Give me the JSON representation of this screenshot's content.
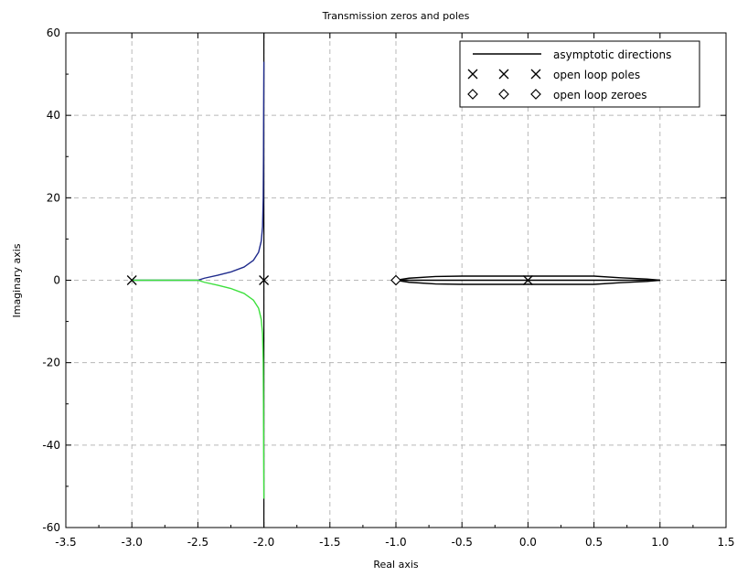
{
  "chart_data": {
    "type": "line",
    "title": "Transmission zeros and poles",
    "xlabel": "Real axis",
    "ylabel": "Imaginary axis",
    "xlim": [
      -3.5,
      1.5
    ],
    "ylim": [
      -60,
      60
    ],
    "x_ticks": [
      "-3.5",
      "-3.0",
      "-2.5",
      "-2.0",
      "-1.5",
      "-1.0",
      "-0.5",
      "0.0",
      "0.5",
      "1.0",
      "1.5"
    ],
    "y_ticks": [
      "-60",
      "-40",
      "-20",
      "0",
      "20",
      "40",
      "60"
    ],
    "grid": true,
    "legend_position": "top-right",
    "legend": [
      {
        "label": "asymptotic directions",
        "marker": "line"
      },
      {
        "label": "open loop poles",
        "marker": "x"
      },
      {
        "label": "open loop zeroes",
        "marker": "diamond"
      }
    ],
    "asymptote": {
      "x": -2.0,
      "ylim": [
        -60,
        60
      ],
      "color": "#000000"
    },
    "series": [
      {
        "color": "#1f2b8c",
        "x": [
          -3.0,
          -2.8,
          -2.6,
          -2.5,
          -2.45,
          -2.35,
          -2.25,
          -2.15,
          -2.08,
          -2.04,
          -2.02,
          -2.01,
          -2.005,
          -2.003,
          -2.002,
          -2.001,
          -2.0
        ],
        "y": [
          0,
          0,
          0,
          0,
          0.5,
          1.2,
          2.0,
          3.2,
          4.8,
          6.8,
          9.5,
          13.0,
          20.0,
          30.0,
          40.0,
          47.0,
          53.0
        ]
      },
      {
        "color": "#3ee03e",
        "x": [
          -3.0,
          -2.8,
          -2.6,
          -2.5,
          -2.45,
          -2.35,
          -2.25,
          -2.15,
          -2.08,
          -2.04,
          -2.02,
          -2.01,
          -2.005,
          -2.003,
          -2.002,
          -2.001,
          -2.0
        ],
        "y": [
          0,
          0,
          0,
          0,
          -0.5,
          -1.2,
          -2.0,
          -3.2,
          -4.8,
          -6.8,
          -9.5,
          -13.0,
          -20.0,
          -30.0,
          -40.0,
          -47.0,
          -53.0
        ]
      },
      {
        "color": "#000000",
        "x": [
          -1.0,
          -0.9,
          -0.7,
          -0.5,
          0.0,
          0.5,
          0.7,
          0.9,
          1.0
        ],
        "y": [
          0,
          0.5,
          0.9,
          1.0,
          1.0,
          1.0,
          0.6,
          0.3,
          0
        ]
      },
      {
        "color": "#000000",
        "x": [
          -1.0,
          -0.9,
          -0.7,
          -0.5,
          0.0,
          0.5,
          0.7,
          0.9,
          1.0
        ],
        "y": [
          0,
          -0.5,
          -0.9,
          -1.0,
          -1.0,
          -1.0,
          -0.6,
          -0.3,
          0
        ]
      },
      {
        "color": "#000000",
        "x": [
          -1.0,
          1.0
        ],
        "y": [
          0,
          0
        ]
      }
    ],
    "poles": [
      {
        "x": -3.0,
        "y": 0
      },
      {
        "x": -2.0,
        "y": 0
      },
      {
        "x": 0.0,
        "y": 0
      }
    ],
    "zeroes": [
      {
        "x": -1.0,
        "y": 0
      }
    ]
  }
}
